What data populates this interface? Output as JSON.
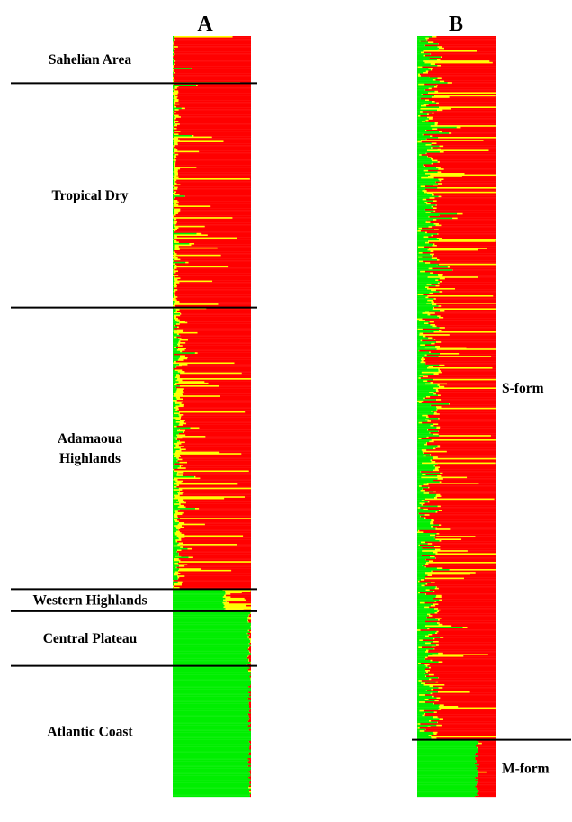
{
  "chart_data": [
    {
      "type": "stacked-bar",
      "panel_label": "A",
      "orientation": "vertical-strip",
      "colors": {
        "cluster_1": "#ff0000",
        "cluster_2": "#ffff00",
        "cluster_3": "#00ee00"
      },
      "groups": [
        {
          "label": "Sahelian Area",
          "fraction": 0.062,
          "composition": {
            "red": 0.95,
            "yellow": 0.04,
            "green": 0.01
          }
        },
        {
          "label": "Tropical Dry",
          "fraction": 0.295,
          "composition": {
            "red": 0.86,
            "yellow": 0.12,
            "green": 0.02
          }
        },
        {
          "label": "Adamaoua Highlands",
          "fraction": 0.37,
          "composition": {
            "red": 0.74,
            "yellow": 0.2,
            "green": 0.06
          }
        },
        {
          "label": "Western Highlands",
          "fraction": 0.029,
          "composition": {
            "red": 0.05,
            "yellow": 0.3,
            "green": 0.65
          }
        },
        {
          "label": "Central Plateau",
          "fraction": 0.072,
          "composition": {
            "red": 0.01,
            "yellow": 0.01,
            "green": 0.98
          }
        },
        {
          "label": "Atlantic Coast",
          "fraction": 0.172,
          "composition": {
            "red": 0.01,
            "yellow": 0.0,
            "green": 0.99
          }
        }
      ]
    },
    {
      "type": "stacked-bar",
      "panel_label": "B",
      "orientation": "vertical-strip",
      "colors": {
        "cluster_1": "#ff0000",
        "cluster_2": "#ffff00",
        "cluster_3": "#00ee00"
      },
      "groups": [
        {
          "label": "S-form",
          "fraction": 0.925,
          "composition": {
            "red": 0.7,
            "yellow": 0.12,
            "green": 0.18
          }
        },
        {
          "label": "M-form",
          "fraction": 0.075,
          "composition": {
            "red": 0.25,
            "yellow": 0.0,
            "green": 0.75
          }
        }
      ]
    }
  ]
}
